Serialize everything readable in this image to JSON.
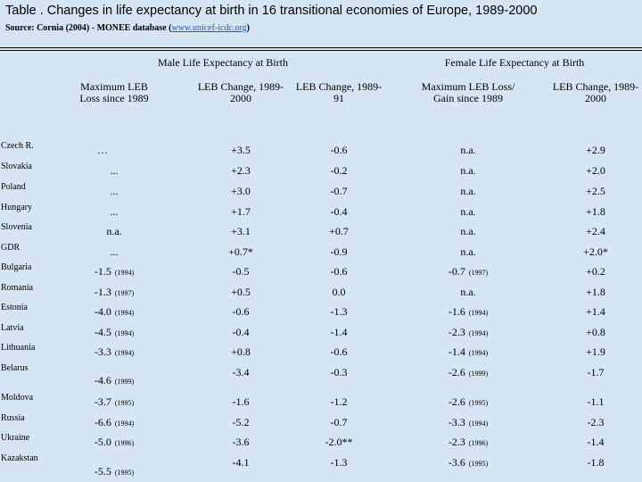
{
  "header": {
    "title": "Table . Changes in life expectancy at birth in 16 transitional economies of Europe, 1989-2000",
    "source_prefix": "Source: Cornia (2004) - MONEE database (",
    "source_link": "www.unicef-icdc.org",
    "source_suffix": ")"
  },
  "table": {
    "groups": [
      "Male Life Expectancy at Birth",
      "Female Life Expectancy at Birth"
    ],
    "columns": [
      "Maximum LEB Loss since 1989",
      "LEB Change, 1989-2000",
      "LEB Change, 1989-91",
      "Maximum LEB Loss/ Gain since 1989",
      "LEB Change, 1989-2000"
    ],
    "rows": [
      {
        "country": "Czech R.",
        "cells": [
          "…",
          "+3.5",
          "-0.6",
          "n.a.",
          "+2.9"
        ]
      },
      {
        "country": "Slovakia",
        "cells": [
          "...",
          "+2.3",
          "-0.2",
          "n.a.",
          "+2.0"
        ]
      },
      {
        "country": "Poland",
        "cells": [
          "...",
          "+3.0",
          "-0.7",
          "n.a.",
          "+2.5"
        ]
      },
      {
        "country": "Hungary",
        "cells": [
          "...",
          "+1.7",
          "-0.4",
          "n.a.",
          "+1.8"
        ]
      },
      {
        "country": "Slovenia",
        "cells": [
          "n.a.",
          "+3.1",
          "+0.7",
          "n.a.",
          "+2.4"
        ]
      },
      {
        "country": "GDR",
        "cells": [
          "...",
          "+0.7*",
          "-0.9",
          "n.a.",
          "+2.0*"
        ]
      },
      {
        "country": "Bulgaria",
        "cells": [
          {
            "text": "-1.5",
            "note": "(1994)"
          },
          "-0.5",
          "-0.6",
          {
            "text": "-0.7",
            "note": "(1997)"
          },
          "+0.2"
        ]
      },
      {
        "country": "Romania",
        "cells": [
          {
            "text": "-1.3",
            "note": "(1997)"
          },
          "+0.5",
          "0.0",
          "n.a.",
          "+1.8"
        ]
      },
      {
        "country": "Estonia",
        "cells": [
          {
            "text": "-4.0",
            "note": "(1994)"
          },
          "-0.6",
          "-1.3",
          {
            "text": "-1.6",
            "note": "(1994)"
          },
          "+1.4"
        ]
      },
      {
        "country": "Latvia",
        "cells": [
          {
            "text": "-4.5",
            "note": "(1994)"
          },
          "-0.4",
          "-1.4",
          {
            "text": "-2.3",
            "note": "(1994)"
          },
          "+0.8"
        ]
      },
      {
        "country": "Lithuania",
        "cells": [
          {
            "text": "-3.3",
            "note": "(1994)"
          },
          "+0.8",
          "-0.6",
          {
            "text": "-1.4",
            "note": "(1994)"
          },
          "+1.9"
        ]
      },
      {
        "country": "Belarus",
        "cells": [
          {
            "text": "-4.6",
            "note": "(1999)"
          },
          "-3.4",
          "-0.3",
          {
            "text": "-2.6",
            "note": "(1999)"
          },
          "-1.7"
        ]
      },
      {
        "country": "Moldova",
        "cells": [
          {
            "text": "-3.7",
            "note": "(1995)"
          },
          "-1.6",
          "-1.2",
          {
            "text": "-2.6",
            "note": "(1995)"
          },
          "-1.1"
        ]
      },
      {
        "country": "Russia",
        "cells": [
          {
            "text": "-6.6",
            "note": "(1994)"
          },
          "-5.2",
          "-0.7",
          {
            "text": "-3.3",
            "note": "(1994)"
          },
          "-2.3"
        ]
      },
      {
        "country": "Ukraine",
        "cells": [
          {
            "text": "-5.0",
            "note": "(1996)"
          },
          "-3.6",
          "-2.0**",
          {
            "text": "-2.3",
            "note": "(1996)"
          },
          "-1.4"
        ]
      },
      {
        "country": "Kazakstan",
        "cells": [
          {
            "text": "-5.5",
            "note": "(1995)"
          },
          "-4.1",
          "-1.3",
          {
            "text": "-3.6",
            "note": "(1995)"
          },
          "-1.8"
        ]
      }
    ]
  }
}
